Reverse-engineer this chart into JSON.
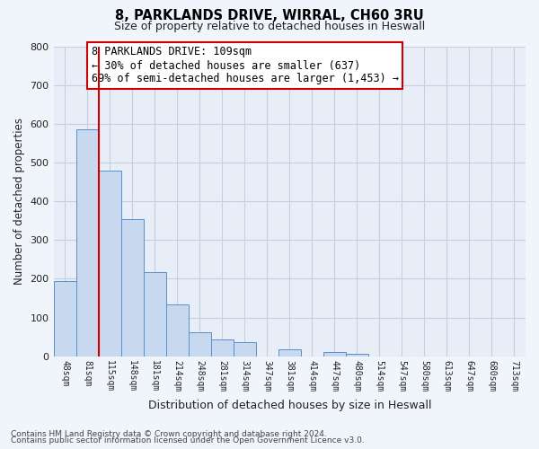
{
  "title": "8, PARKLANDS DRIVE, WIRRAL, CH60 3RU",
  "subtitle": "Size of property relative to detached houses in Heswall",
  "xlabel": "Distribution of detached houses by size in Heswall",
  "ylabel": "Number of detached properties",
  "footnote1": "Contains HM Land Registry data © Crown copyright and database right 2024.",
  "footnote2": "Contains public sector information licensed under the Open Government Licence v3.0.",
  "bar_labels": [
    "48sqm",
    "81sqm",
    "115sqm",
    "148sqm",
    "181sqm",
    "214sqm",
    "248sqm",
    "281sqm",
    "314sqm",
    "347sqm",
    "381sqm",
    "414sqm",
    "447sqm",
    "480sqm",
    "514sqm",
    "547sqm",
    "580sqm",
    "613sqm",
    "647sqm",
    "680sqm",
    "713sqm"
  ],
  "bar_values": [
    193,
    585,
    480,
    355,
    218,
    133,
    61,
    44,
    36,
    0,
    17,
    0,
    12,
    7,
    0,
    0,
    0,
    0,
    0,
    0,
    0
  ],
  "bar_color": "#c8d9ef",
  "bar_edge_color": "#5b8fc9",
  "highlight_bar_index": 2,
  "highlight_color": "#cc0000",
  "ylim": [
    0,
    800
  ],
  "yticks": [
    0,
    100,
    200,
    300,
    400,
    500,
    600,
    700,
    800
  ],
  "annotation_title": "8 PARKLANDS DRIVE: 109sqm",
  "annotation_line1": "← 30% of detached houses are smaller (637)",
  "annotation_line2": "69% of semi-detached houses are larger (1,453) →",
  "bg_color": "#f0f4fb",
  "plot_bg_color": "#e8eef8",
  "grid_color": "#c5cfe0"
}
